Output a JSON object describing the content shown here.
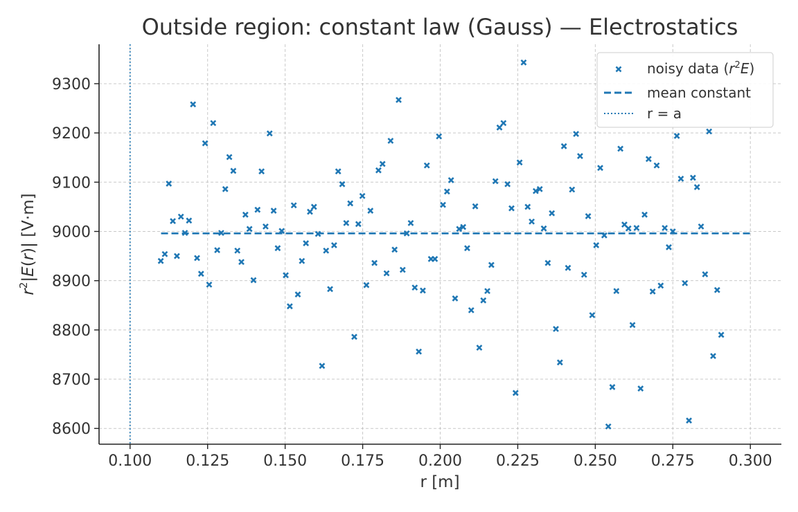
{
  "chart_data": {
    "type": "scatter",
    "title": "Outside region: constant law (Gauss) — Electrostatics",
    "xlabel": "r [m]",
    "ylabel": "r²|E(r)| [V·m]",
    "xlim": [
      0.09,
      0.31
    ],
    "ylim": [
      8568,
      9380
    ],
    "x_ticks": [
      0.1,
      0.125,
      0.15,
      0.175,
      0.2,
      0.225,
      0.25,
      0.275,
      0.3
    ],
    "x_tick_labels": [
      "0.100",
      "0.125",
      "0.150",
      "0.175",
      "0.200",
      "0.225",
      "0.250",
      "0.275",
      "0.300"
    ],
    "y_ticks": [
      8600,
      8700,
      8800,
      8900,
      9000,
      9100,
      9200,
      9300
    ],
    "y_tick_labels": [
      "8600",
      "8700",
      "8800",
      "8900",
      "9000",
      "9100",
      "9200",
      "9300"
    ],
    "grid": true,
    "legend_position": "top-right",
    "series": [
      {
        "name": "noisy data (r²E)",
        "kind": "scatter",
        "marker": "x",
        "color": "#1f77b4",
        "points": [
          [
            0.1099,
            8940
          ],
          [
            0.1112,
            8954
          ],
          [
            0.1125,
            9097
          ],
          [
            0.1138,
            9021
          ],
          [
            0.1151,
            8950
          ],
          [
            0.1164,
            9030
          ],
          [
            0.1177,
            8997
          ],
          [
            0.119,
            9022
          ],
          [
            0.1203,
            9258
          ],
          [
            0.1216,
            8946
          ],
          [
            0.1229,
            8914
          ],
          [
            0.1242,
            9179
          ],
          [
            0.1255,
            8892
          ],
          [
            0.1268,
            9220
          ],
          [
            0.1281,
            8962
          ],
          [
            0.1294,
            8997
          ],
          [
            0.1307,
            9086
          ],
          [
            0.132,
            9151
          ],
          [
            0.1333,
            9123
          ],
          [
            0.1346,
            8961
          ],
          [
            0.1359,
            8938
          ],
          [
            0.1372,
            9034
          ],
          [
            0.1385,
            9005
          ],
          [
            0.1398,
            8901
          ],
          [
            0.1411,
            9044
          ],
          [
            0.1424,
            9122
          ],
          [
            0.1437,
            9010
          ],
          [
            0.145,
            9199
          ],
          [
            0.1463,
            9042
          ],
          [
            0.1476,
            8966
          ],
          [
            0.1489,
            9001
          ],
          [
            0.1502,
            8911
          ],
          [
            0.1515,
            8848
          ],
          [
            0.1528,
            9053
          ],
          [
            0.1541,
            8872
          ],
          [
            0.1554,
            8940
          ],
          [
            0.1567,
            8976
          ],
          [
            0.158,
            9040
          ],
          [
            0.1593,
            9050
          ],
          [
            0.1606,
            8995
          ],
          [
            0.1619,
            8727
          ],
          [
            0.1632,
            8961
          ],
          [
            0.1645,
            8883
          ],
          [
            0.1658,
            8972
          ],
          [
            0.1671,
            9122
          ],
          [
            0.1684,
            9096
          ],
          [
            0.1697,
            9017
          ],
          [
            0.171,
            9057
          ],
          [
            0.1723,
            8786
          ],
          [
            0.1736,
            9015
          ],
          [
            0.1749,
            9072
          ],
          [
            0.1762,
            8891
          ],
          [
            0.1775,
            9042
          ],
          [
            0.1788,
            8936
          ],
          [
            0.1801,
            9124
          ],
          [
            0.1814,
            9137
          ],
          [
            0.1827,
            8915
          ],
          [
            0.184,
            9184
          ],
          [
            0.1853,
            8963
          ],
          [
            0.1866,
            9267
          ],
          [
            0.1879,
            8922
          ],
          [
            0.1892,
            8996
          ],
          [
            0.1905,
            9017
          ],
          [
            0.1918,
            8886
          ],
          [
            0.1931,
            8756
          ],
          [
            0.1944,
            8880
          ],
          [
            0.1957,
            9134
          ],
          [
            0.197,
            8944
          ],
          [
            0.1983,
            8944
          ],
          [
            0.1996,
            9193
          ],
          [
            0.2009,
            9054
          ],
          [
            0.2022,
            9081
          ],
          [
            0.2035,
            9104
          ],
          [
            0.2048,
            8864
          ],
          [
            0.2061,
            9005
          ],
          [
            0.2074,
            9009
          ],
          [
            0.2087,
            8966
          ],
          [
            0.21,
            8840
          ],
          [
            0.2113,
            9051
          ],
          [
            0.2126,
            8764
          ],
          [
            0.2139,
            8860
          ],
          [
            0.2152,
            8879
          ],
          [
            0.2165,
            8932
          ],
          [
            0.2178,
            9102
          ],
          [
            0.2191,
            9211
          ],
          [
            0.2204,
            9220
          ],
          [
            0.2217,
            9096
          ],
          [
            0.223,
            9047
          ],
          [
            0.2243,
            8672
          ],
          [
            0.2256,
            9140
          ],
          [
            0.2269,
            9343
          ],
          [
            0.2282,
            9050
          ],
          [
            0.2295,
            9020
          ],
          [
            0.2308,
            9082
          ],
          [
            0.2321,
            9086
          ],
          [
            0.2334,
            9006
          ],
          [
            0.2347,
            8936
          ],
          [
            0.236,
            9037
          ],
          [
            0.2373,
            8802
          ],
          [
            0.2386,
            8734
          ],
          [
            0.2399,
            9173
          ],
          [
            0.2412,
            8926
          ],
          [
            0.2425,
            9085
          ],
          [
            0.2438,
            9198
          ],
          [
            0.2451,
            9153
          ],
          [
            0.2464,
            8912
          ],
          [
            0.2477,
            9031
          ],
          [
            0.249,
            8830
          ],
          [
            0.2503,
            8972
          ],
          [
            0.2516,
            9129
          ],
          [
            0.2529,
            8992
          ],
          [
            0.2542,
            8604
          ],
          [
            0.2555,
            8684
          ],
          [
            0.2568,
            8879
          ],
          [
            0.2581,
            9168
          ],
          [
            0.2594,
            9014
          ],
          [
            0.2607,
            9006
          ],
          [
            0.262,
            8810
          ],
          [
            0.2633,
            9007
          ],
          [
            0.2646,
            8681
          ],
          [
            0.2659,
            9034
          ],
          [
            0.2672,
            9147
          ],
          [
            0.2685,
            8878
          ],
          [
            0.2698,
            9134
          ],
          [
            0.2711,
            8890
          ],
          [
            0.2724,
            9007
          ],
          [
            0.2737,
            8968
          ],
          [
            0.275,
            9000
          ],
          [
            0.2763,
            9194
          ],
          [
            0.2776,
            9107
          ],
          [
            0.2789,
            8895
          ],
          [
            0.2802,
            8616
          ],
          [
            0.2815,
            9109
          ],
          [
            0.2828,
            9090
          ],
          [
            0.2841,
            9010
          ],
          [
            0.2854,
            8913
          ],
          [
            0.2867,
            9203
          ],
          [
            0.288,
            8747
          ],
          [
            0.2893,
            8881
          ],
          [
            0.2906,
            8790
          ]
        ]
      },
      {
        "name": "mean constant",
        "kind": "hline",
        "style": "dashed",
        "color": "#1f77b4",
        "x": [
          0.11,
          0.3
        ],
        "y": 8996
      },
      {
        "name": "r = a",
        "kind": "vline",
        "style": "dotted",
        "color": "#1f77b4",
        "x": 0.1
      }
    ]
  }
}
